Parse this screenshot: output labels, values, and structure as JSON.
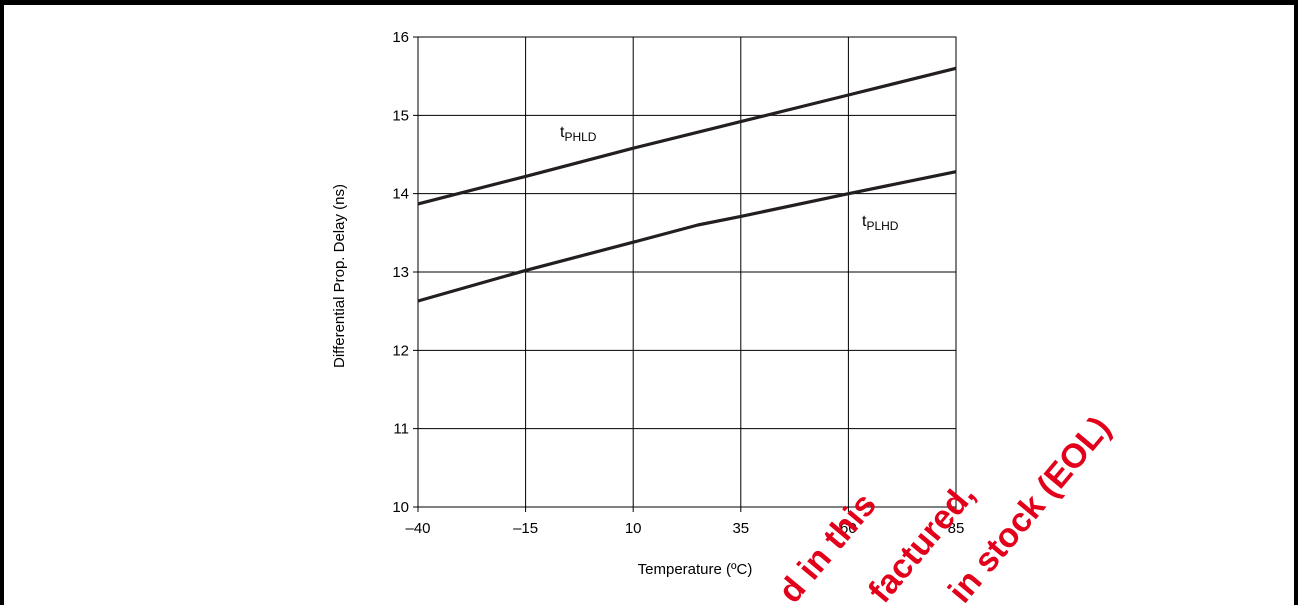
{
  "chart_data": {
    "type": "line",
    "title": "",
    "xlabel": "Temperature (ºC)",
    "ylabel": "Differential Prop. Delay (ns)",
    "x_ticks": [
      -40,
      -15,
      10,
      35,
      60,
      85
    ],
    "y_ticks": [
      10,
      11,
      12,
      13,
      14,
      15,
      16
    ],
    "xlim": [
      -40,
      85
    ],
    "ylim": [
      10,
      16
    ],
    "grid": true,
    "series": [
      {
        "name": "tPHLD",
        "label_main": "t",
        "label_sub": "PHLD",
        "color": "#231f20",
        "points": [
          [
            -40,
            13.87
          ],
          [
            -15,
            14.22
          ],
          [
            10,
            14.58
          ],
          [
            35,
            14.92
          ],
          [
            60,
            15.26
          ],
          [
            85,
            15.6
          ]
        ]
      },
      {
        "name": "tPLHD",
        "label_main": "t",
        "label_sub": "PLHD",
        "color": "#231f20",
        "points": [
          [
            -40,
            12.63
          ],
          [
            -15,
            13.02
          ],
          [
            10,
            13.38
          ],
          [
            25,
            13.6
          ],
          [
            35,
            13.71
          ],
          [
            60,
            14.0
          ],
          [
            85,
            14.28
          ]
        ]
      }
    ]
  },
  "watermark": {
    "color": "#e3001b",
    "lines": [
      "d in this",
      "factured,",
      "in stock (EOL)"
    ]
  }
}
